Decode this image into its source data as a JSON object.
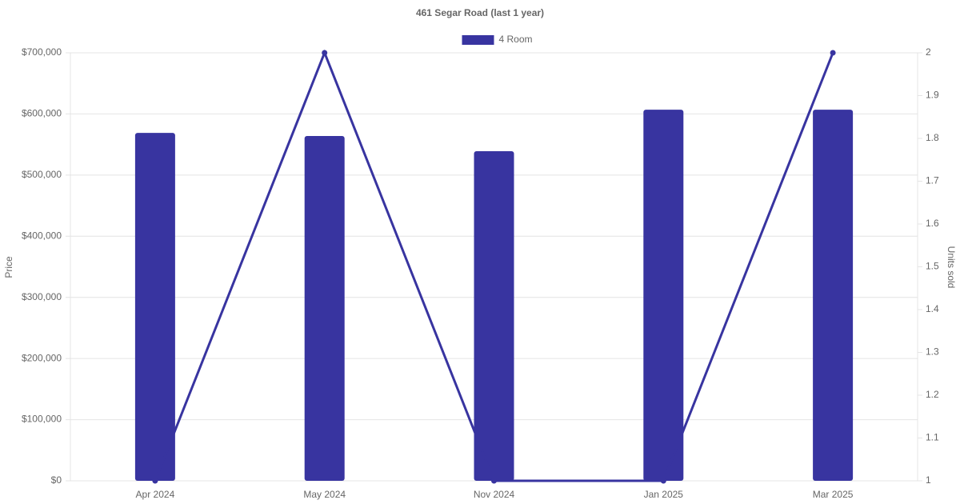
{
  "chart_data": {
    "type": "bar-line",
    "title": "461 Segar Road (last 1 year)",
    "y_label": "Price",
    "y2_label": "Units sold",
    "categories": [
      "Apr 2024",
      "May 2024",
      "Nov 2024",
      "Jan 2025",
      "Mar 2025"
    ],
    "series": [
      {
        "name": "4 Room",
        "type": "bar",
        "color": "#3834a0",
        "values": [
          569000,
          564000,
          539000,
          607000,
          607000
        ]
      },
      {
        "type": "line",
        "axis": "y2",
        "color": "#3834a0",
        "values": [
          1,
          2,
          1,
          1,
          2
        ]
      }
    ],
    "ylim": [
      0,
      700000
    ],
    "yticks": [
      {
        "value": 0,
        "label": "$0"
      },
      {
        "value": 100000,
        "label": "$100,000"
      },
      {
        "value": 200000,
        "label": "$200,000"
      },
      {
        "value": 300000,
        "label": "$300,000"
      },
      {
        "value": 400000,
        "label": "$400,000"
      },
      {
        "value": 500000,
        "label": "$500,000"
      },
      {
        "value": 600000,
        "label": "$600,000"
      },
      {
        "value": 700000,
        "label": "$700,000"
      }
    ],
    "y2lim": [
      1,
      2
    ],
    "y2ticks": [
      1,
      1.1,
      1.2,
      1.3,
      1.4,
      1.5,
      1.6,
      1.7,
      1.8,
      1.9,
      2
    ],
    "grid": true,
    "legend": "top"
  }
}
